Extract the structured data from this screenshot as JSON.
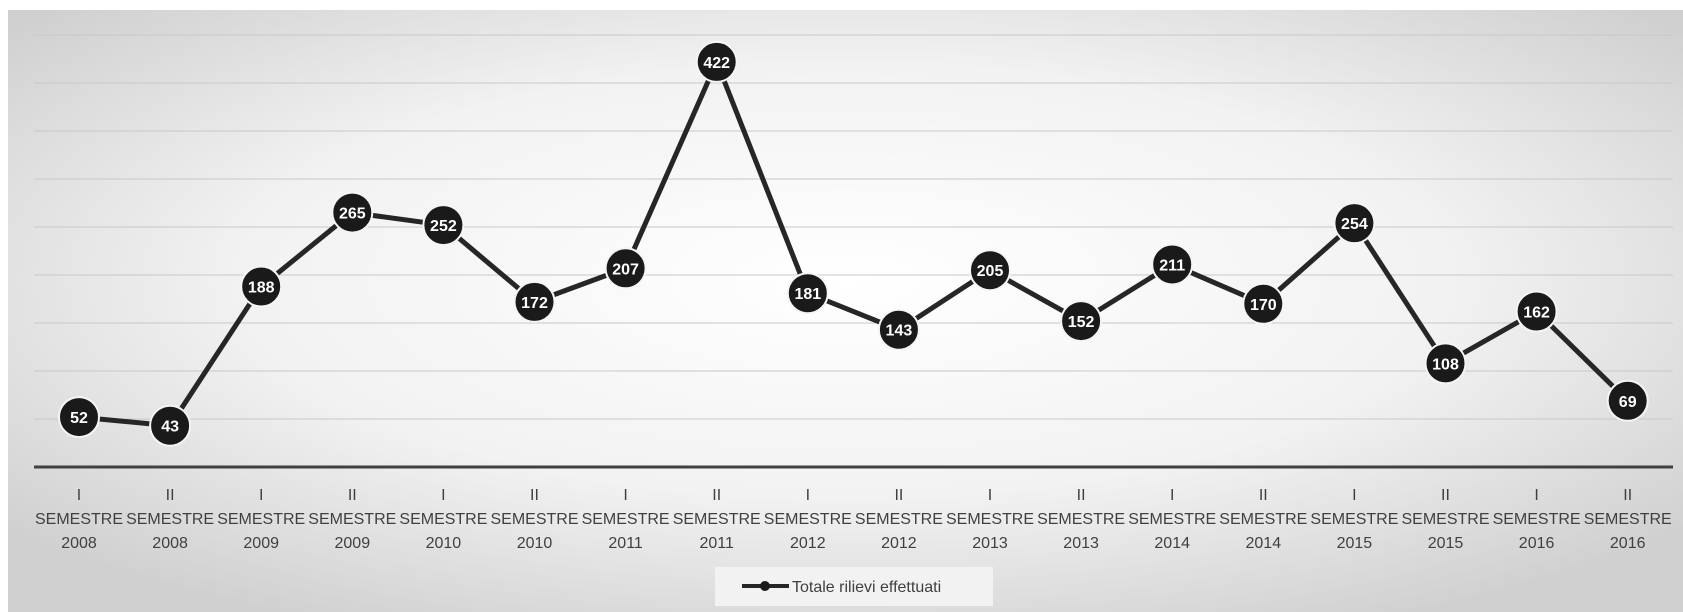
{
  "chart_data": {
    "type": "line",
    "title": "",
    "xlabel": "",
    "ylabel": "",
    "ylim": [
      0,
      450
    ],
    "grid": true,
    "legend_placement": "bottom",
    "categories": [
      [
        "I",
        "SEMESTRE",
        "2008"
      ],
      [
        "II",
        "SEMESTRE",
        "2008"
      ],
      [
        "I",
        "SEMESTRE",
        "2009"
      ],
      [
        "II",
        "SEMESTRE",
        "2009"
      ],
      [
        "I",
        "SEMESTRE",
        "2010"
      ],
      [
        "II",
        "SEMESTRE",
        "2010"
      ],
      [
        "I",
        "SEMESTRE",
        "2011"
      ],
      [
        "II",
        "SEMESTRE",
        "2011"
      ],
      [
        "I",
        "SEMESTRE",
        "2012"
      ],
      [
        "II",
        "SEMESTRE",
        "2012"
      ],
      [
        "I",
        "SEMESTRE",
        "2013"
      ],
      [
        "II",
        "SEMESTRE",
        "2013"
      ],
      [
        "I",
        "SEMESTRE",
        "2014"
      ],
      [
        "II",
        "SEMESTRE",
        "2014"
      ],
      [
        "I",
        "SEMESTRE",
        "2015"
      ],
      [
        "II",
        "SEMESTRE",
        "2015"
      ],
      [
        "I",
        "SEMESTRE",
        "2016"
      ],
      [
        "II",
        "SEMESTRE",
        "2016"
      ]
    ],
    "series": [
      {
        "name": "Totale rilievi effettuati",
        "values": [
          52,
          43,
          188,
          265,
          252,
          172,
          207,
          422,
          181,
          143,
          205,
          152,
          211,
          170,
          254,
          108,
          162,
          69
        ]
      }
    ],
    "colors": {
      "line": "#262626",
      "marker": "#1a1a1a",
      "grid": "#c8c8c8",
      "axis": "#404040",
      "label_text": "#ffffff"
    }
  }
}
